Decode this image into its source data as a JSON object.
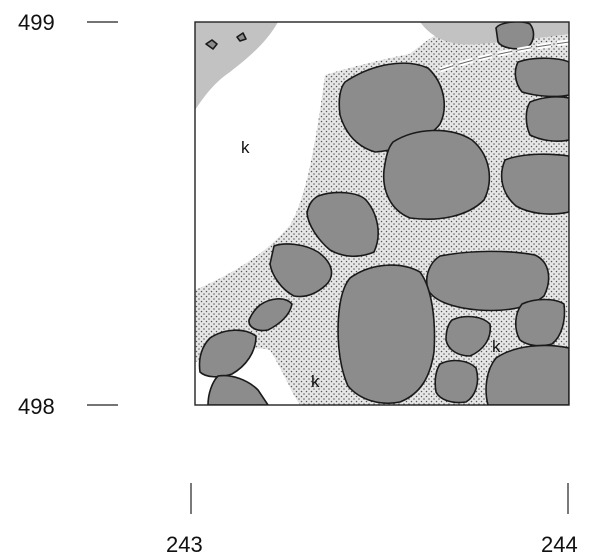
{
  "axes": {
    "y_top": "499",
    "y_bottom": "498",
    "x_left": "243",
    "x_right": "244"
  },
  "labels": {
    "k_upper": "k",
    "k_lower": "k",
    "k_right": "k"
  },
  "colors": {
    "stone": "#8c8c8c",
    "stone_outline": "#1a1a1a",
    "dotted_fill": "#e6e6e6",
    "grey_patch": "#c2c2c2",
    "frame": "#222222"
  }
}
